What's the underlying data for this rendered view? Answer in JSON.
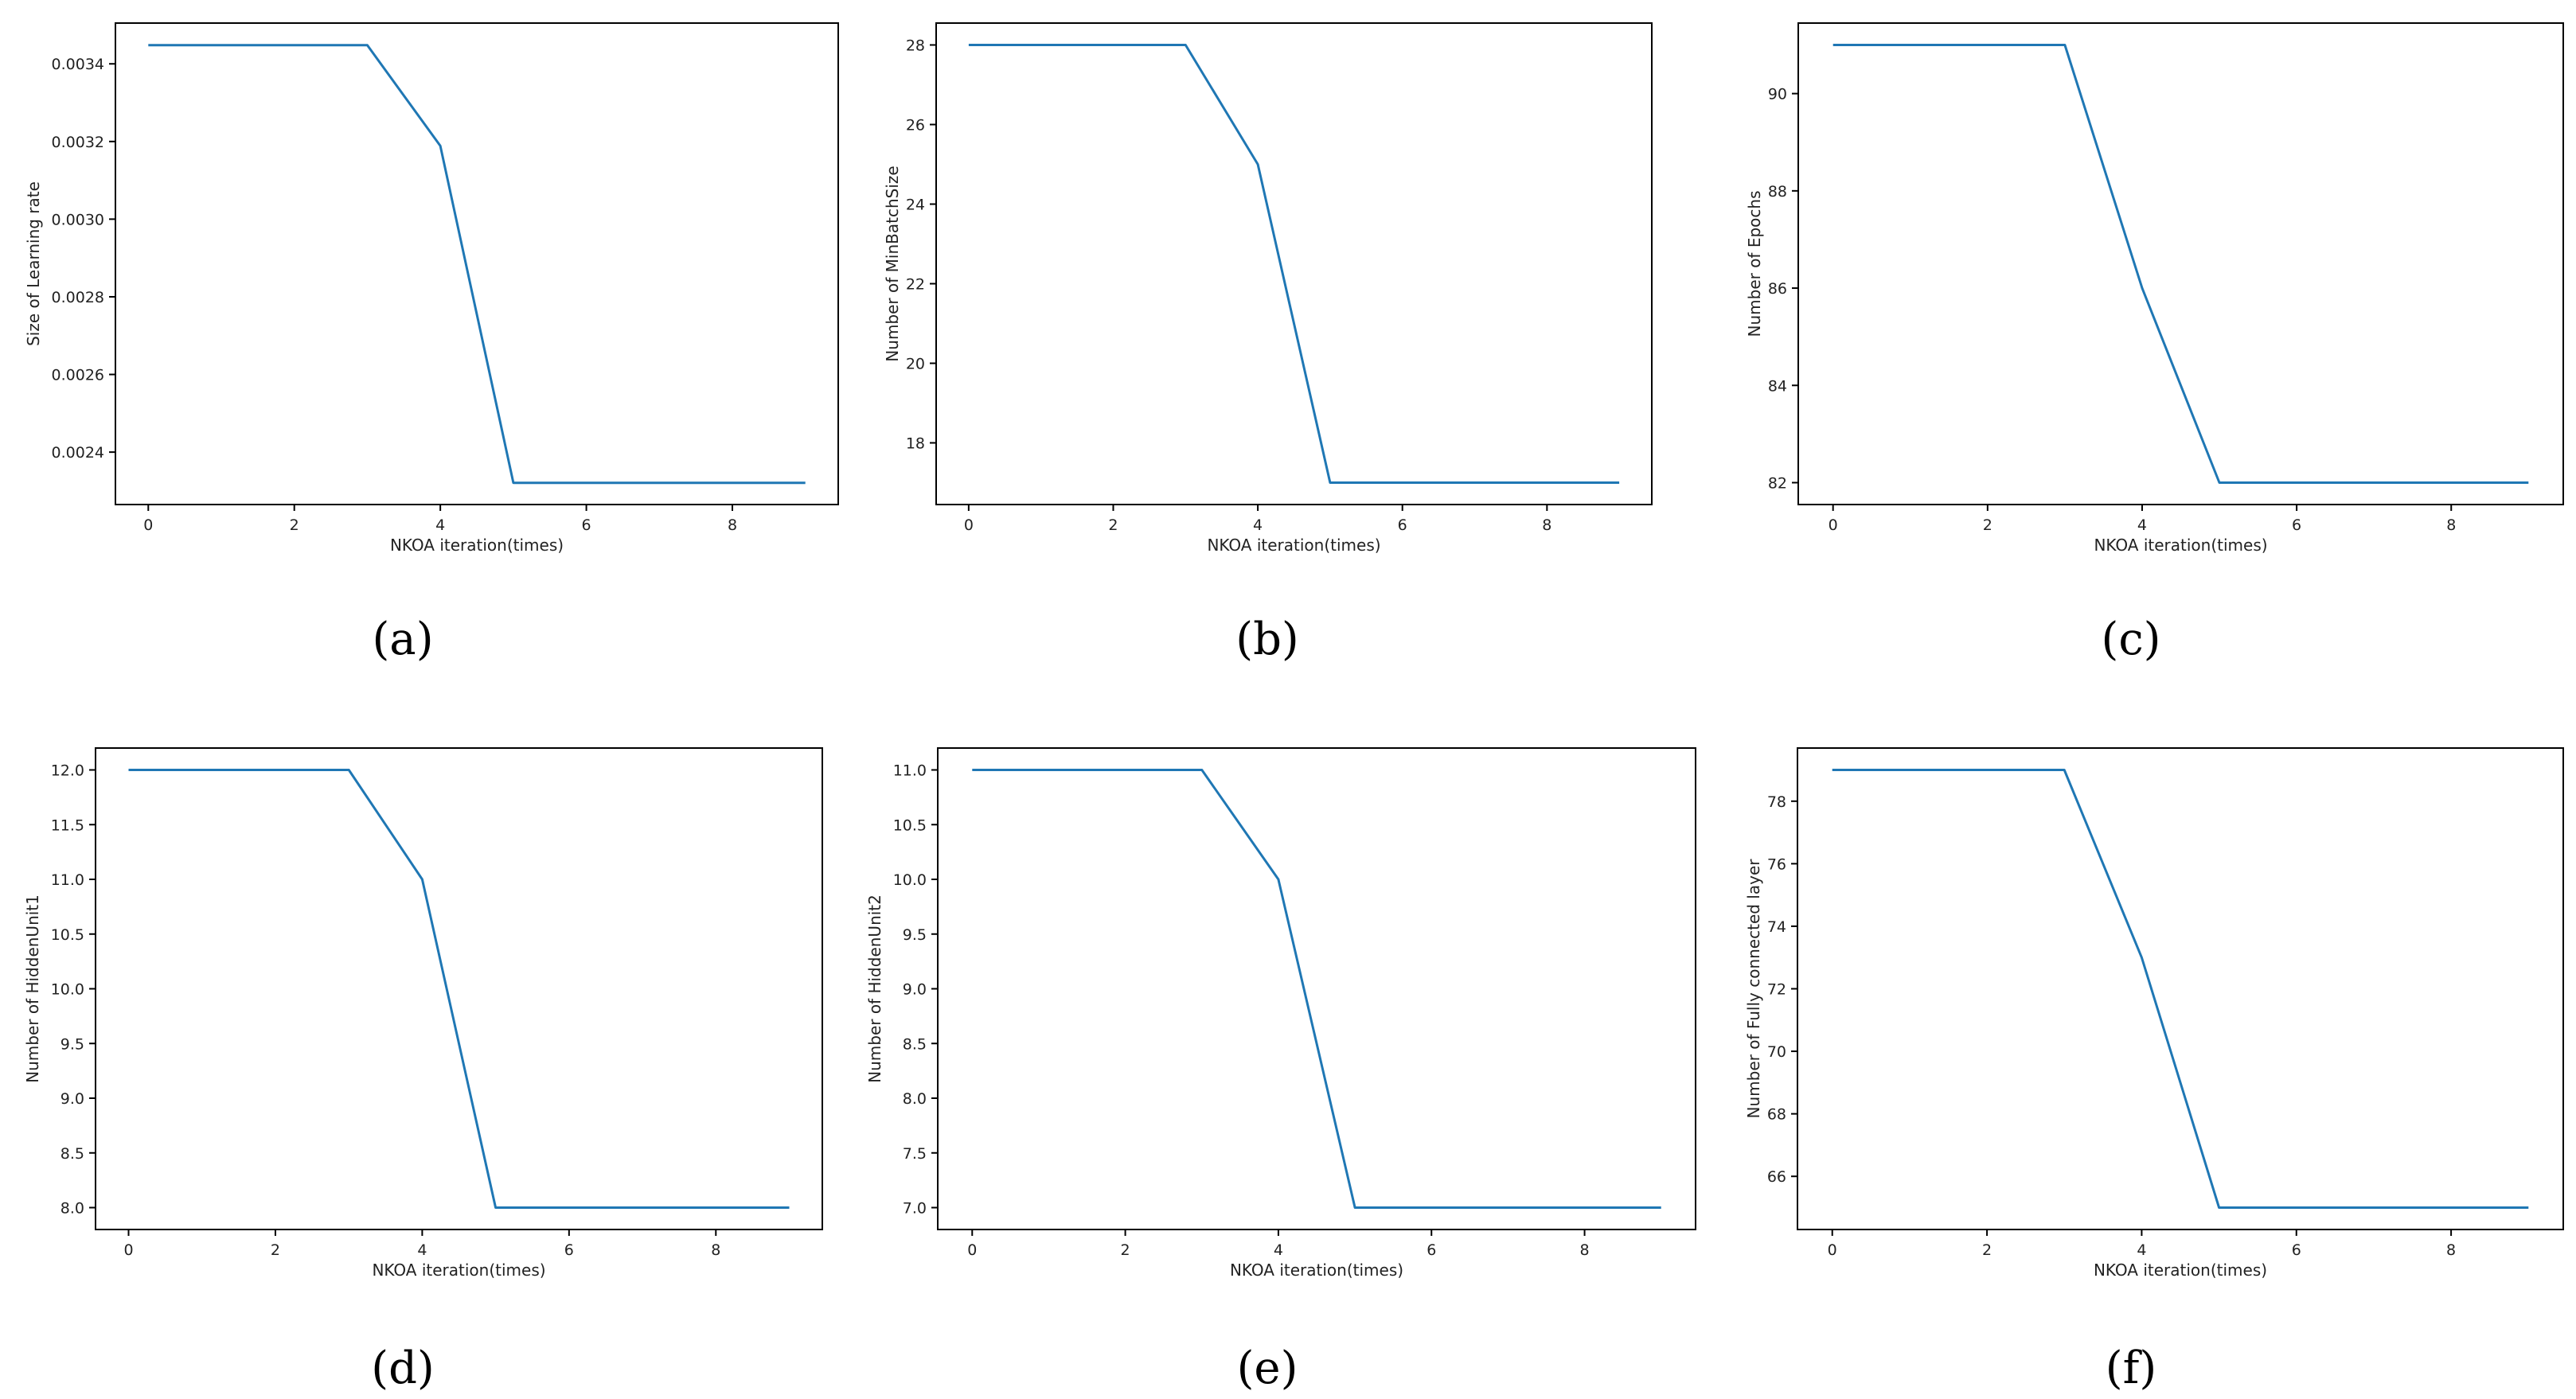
{
  "chart_data": [
    {
      "type": "line",
      "caption": "(a)",
      "xlabel": "NKOA iteration(times)",
      "ylabel": "Size of Learning rate",
      "x": [
        0,
        1,
        2,
        3,
        4,
        5,
        6,
        7,
        8,
        9
      ],
      "series": [
        {
          "values": [
            0.003448,
            0.003448,
            0.003448,
            0.003448,
            0.003189,
            0.002321,
            0.002321,
            0.002321,
            0.002321,
            0.002321
          ]
        }
      ],
      "xlim": [
        -0.45,
        9.45
      ],
      "ylim": [
        0.002265,
        0.003505
      ],
      "xticks": [
        0,
        2,
        4,
        6,
        8
      ],
      "xtick_labels": [
        "0",
        "2",
        "4",
        "6",
        "8"
      ],
      "yticks": [
        0.0024,
        0.0026,
        0.0028,
        0.003,
        0.0032,
        0.0034
      ],
      "ytick_labels": [
        "0.0024",
        "0.0026",
        "0.0028",
        "0.0030",
        "0.0032",
        "0.0034"
      ],
      "line_color": "#1f77b4",
      "grid": false
    },
    {
      "type": "line",
      "caption": "(b)",
      "xlabel": "NKOA iteration(times)",
      "ylabel": "Number of MinBatchSize",
      "x": [
        0,
        1,
        2,
        3,
        4,
        5,
        6,
        7,
        8,
        9
      ],
      "series": [
        {
          "values": [
            28,
            28,
            28,
            28,
            25,
            17,
            17,
            17,
            17,
            17
          ]
        }
      ],
      "xlim": [
        -0.45,
        9.45
      ],
      "ylim": [
        16.45,
        28.55
      ],
      "xticks": [
        0,
        2,
        4,
        6,
        8
      ],
      "xtick_labels": [
        "0",
        "2",
        "4",
        "6",
        "8"
      ],
      "yticks": [
        18,
        20,
        22,
        24,
        26,
        28
      ],
      "ytick_labels": [
        "18",
        "20",
        "22",
        "24",
        "26",
        "28"
      ],
      "line_color": "#1f77b4",
      "grid": false
    },
    {
      "type": "line",
      "caption": "(c)",
      "xlabel": "NKOA iteration(times)",
      "ylabel": "Number of Epochs",
      "x": [
        0,
        1,
        2,
        3,
        4,
        5,
        6,
        7,
        8,
        9
      ],
      "series": [
        {
          "values": [
            91,
            91,
            91,
            91,
            86,
            82,
            82,
            82,
            82,
            82
          ]
        }
      ],
      "xlim": [
        -0.45,
        9.45
      ],
      "ylim": [
        81.55,
        91.45
      ],
      "xticks": [
        0,
        2,
        4,
        6,
        8
      ],
      "xtick_labels": [
        "0",
        "2",
        "4",
        "6",
        "8"
      ],
      "yticks": [
        82,
        84,
        86,
        88,
        90
      ],
      "ytick_labels": [
        "82",
        "84",
        "86",
        "88",
        "90"
      ],
      "line_color": "#1f77b4",
      "grid": false
    },
    {
      "type": "line",
      "caption": "(d)",
      "xlabel": "NKOA iteration(times)",
      "ylabel": "Number of HiddenUnit1",
      "x": [
        0,
        1,
        2,
        3,
        4,
        5,
        6,
        7,
        8,
        9
      ],
      "series": [
        {
          "values": [
            12,
            12,
            12,
            12,
            11,
            8,
            8,
            8,
            8,
            8
          ]
        }
      ],
      "xlim": [
        -0.45,
        9.45
      ],
      "ylim": [
        7.8,
        12.2
      ],
      "xticks": [
        0,
        2,
        4,
        6,
        8
      ],
      "xtick_labels": [
        "0",
        "2",
        "4",
        "6",
        "8"
      ],
      "yticks": [
        8,
        8.5,
        9,
        9.5,
        10,
        10.5,
        11,
        11.5,
        12
      ],
      "ytick_labels": [
        "8.0",
        "8.5",
        "9.0",
        "9.5",
        "10.0",
        "10.5",
        "11.0",
        "11.5",
        "12.0"
      ],
      "line_color": "#1f77b4",
      "grid": false
    },
    {
      "type": "line",
      "caption": "(e)",
      "xlabel": "NKOA iteration(times)",
      "ylabel": "Number of HiddenUnit2",
      "x": [
        0,
        1,
        2,
        3,
        4,
        5,
        6,
        7,
        8,
        9
      ],
      "series": [
        {
          "values": [
            11,
            11,
            11,
            11,
            10,
            7,
            7,
            7,
            7,
            7
          ]
        }
      ],
      "xlim": [
        -0.45,
        9.45
      ],
      "ylim": [
        6.8,
        11.2
      ],
      "xticks": [
        0,
        2,
        4,
        6,
        8
      ],
      "xtick_labels": [
        "0",
        "2",
        "4",
        "6",
        "8"
      ],
      "yticks": [
        7,
        7.5,
        8,
        8.5,
        9,
        9.5,
        10,
        10.5,
        11
      ],
      "ytick_labels": [
        "7.0",
        "7.5",
        "8.0",
        "8.5",
        "9.0",
        "9.5",
        "10.0",
        "10.5",
        "11.0"
      ],
      "line_color": "#1f77b4",
      "grid": false
    },
    {
      "type": "line",
      "caption": "(f)",
      "xlabel": "NKOA iteration(times)",
      "ylabel": "Number of Fully connected layer",
      "x": [
        0,
        1,
        2,
        3,
        4,
        5,
        6,
        7,
        8,
        9
      ],
      "series": [
        {
          "values": [
            79,
            79,
            79,
            79,
            73,
            65,
            65,
            65,
            65,
            65
          ]
        }
      ],
      "xlim": [
        -0.45,
        9.45
      ],
      "ylim": [
        64.3,
        79.7
      ],
      "xticks": [
        0,
        2,
        4,
        6,
        8
      ],
      "xtick_labels": [
        "0",
        "2",
        "4",
        "6",
        "8"
      ],
      "yticks": [
        66,
        68,
        70,
        72,
        74,
        76,
        78
      ],
      "ytick_labels": [
        "66",
        "68",
        "70",
        "72",
        "74",
        "76",
        "78"
      ],
      "line_color": "#1f77b4",
      "grid": false
    }
  ]
}
